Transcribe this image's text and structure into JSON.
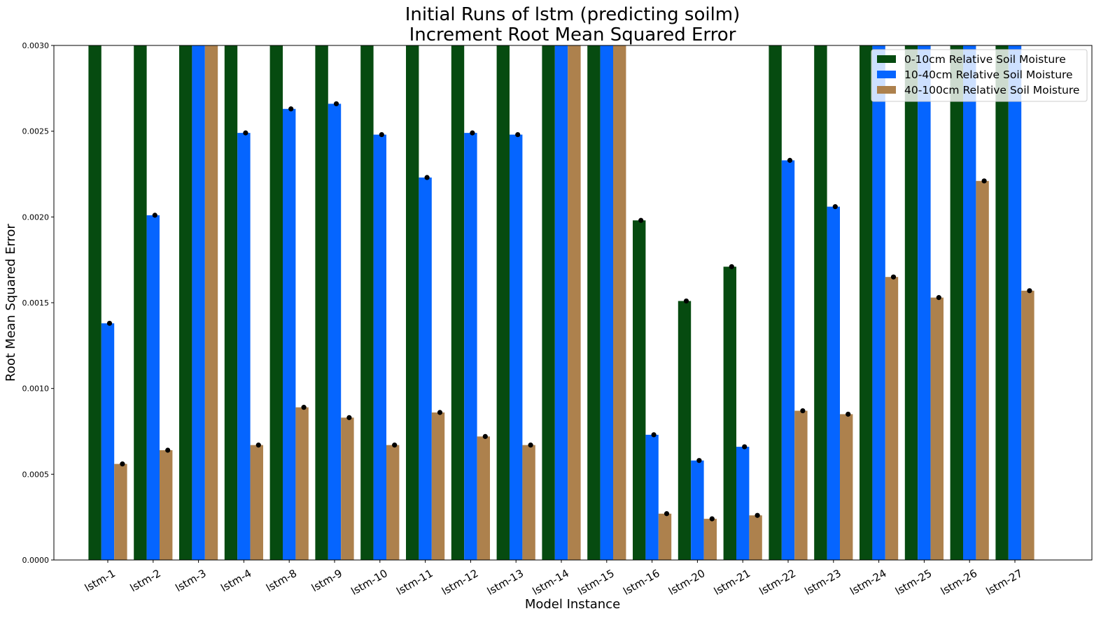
{
  "chart_data": {
    "type": "bar",
    "title_line1": "Initial Runs of lstm (predicting soilm)",
    "title_line2": "Increment Root Mean Squared Error",
    "xlabel": "Model Instance",
    "ylabel": "Root Mean Squared Error",
    "ylim": [
      0,
      0.003
    ],
    "yticks": [
      "0.0000",
      "0.0005",
      "0.0010",
      "0.0015",
      "0.0020",
      "0.0025",
      "0.0030"
    ],
    "ytick_values": [
      0,
      0.0005,
      0.001,
      0.0015,
      0.002,
      0.0025,
      0.003
    ],
    "grid": false,
    "legend_position": "top-right",
    "categories": [
      "lstm-1",
      "lstm-2",
      "lstm-3",
      "lstm-4",
      "lstm-8",
      "lstm-9",
      "lstm-10",
      "lstm-11",
      "lstm-12",
      "lstm-13",
      "lstm-14",
      "lstm-15",
      "lstm-16",
      "lstm-20",
      "lstm-21",
      "lstm-22",
      "lstm-23",
      "lstm-24",
      "lstm-25",
      "lstm-26",
      "lstm-27"
    ],
    "series": [
      {
        "name": "0-10cm Relative Soil Moisture",
        "color": "#064b10",
        "values": [
          0.0031,
          0.0031,
          0.0031,
          0.0031,
          0.0031,
          0.0031,
          0.0031,
          0.0031,
          0.0031,
          0.0031,
          0.0031,
          0.0031,
          0.00198,
          0.00151,
          0.00171,
          0.0031,
          0.0031,
          0.0031,
          0.0031,
          0.0031,
          0.0031
        ]
      },
      {
        "name": "10-40cm Relative Soil Moisture",
        "color": "#0565ff",
        "values": [
          0.00138,
          0.00201,
          0.0031,
          0.00249,
          0.00263,
          0.00266,
          0.00248,
          0.00223,
          0.00249,
          0.00248,
          0.0031,
          0.0031,
          0.00073,
          0.00058,
          0.00066,
          0.00233,
          0.00206,
          0.0031,
          0.0031,
          0.0031,
          0.0031
        ]
      },
      {
        "name": "40-100cm Relative Soil Moisture",
        "color": "#ad814d",
        "values": [
          0.00056,
          0.00064,
          0.0031,
          0.00067,
          0.00089,
          0.00083,
          0.00067,
          0.00086,
          0.00072,
          0.00067,
          0.0031,
          0.0031,
          0.00027,
          0.00024,
          0.00026,
          0.00087,
          0.00085,
          0.00165,
          0.00153,
          0.00221,
          0.00157
        ]
      }
    ]
  }
}
